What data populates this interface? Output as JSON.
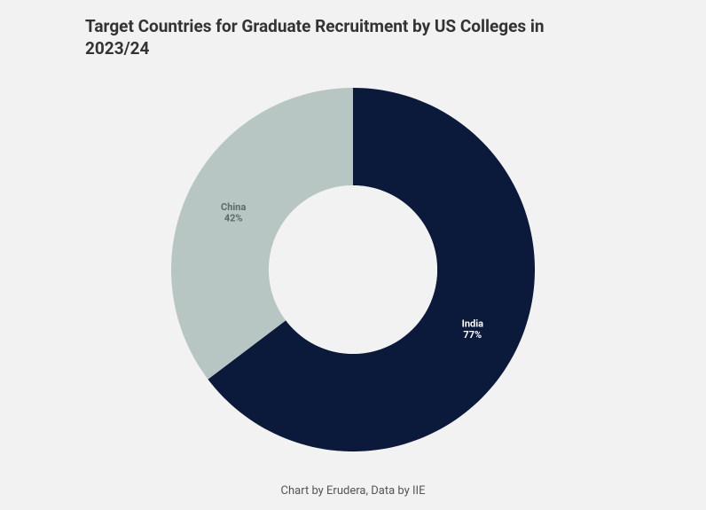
{
  "title": "Target Countries for Graduate Recruitment by US Colleges in 2023/24",
  "footer": "Chart by Erudera, Data by IIE",
  "chart": {
    "type": "donut",
    "background_color": "#f2f2f2",
    "inner_hole_color": "#f2f2f2",
    "outer_radius": 205,
    "inner_radius": 95,
    "start_angle_deg": 0,
    "slices": [
      {
        "name": "India",
        "value": 77,
        "display_value": "77%",
        "fraction": 0.647,
        "color": "#0b1a3a",
        "label_color": "#ffffff",
        "label_offset_angle_deg": 116,
        "label_radius": 150
      },
      {
        "name": "China",
        "value": 42,
        "display_value": "42%",
        "fraction": 0.353,
        "color": "#b7c6c2",
        "label_color": "#5a6b68",
        "label_offset_angle_deg": 296,
        "label_radius": 150
      }
    ],
    "label_fontsize": 11,
    "title_fontsize": 19,
    "title_color": "#333333",
    "footer_fontsize": 13,
    "footer_color": "#555555"
  }
}
